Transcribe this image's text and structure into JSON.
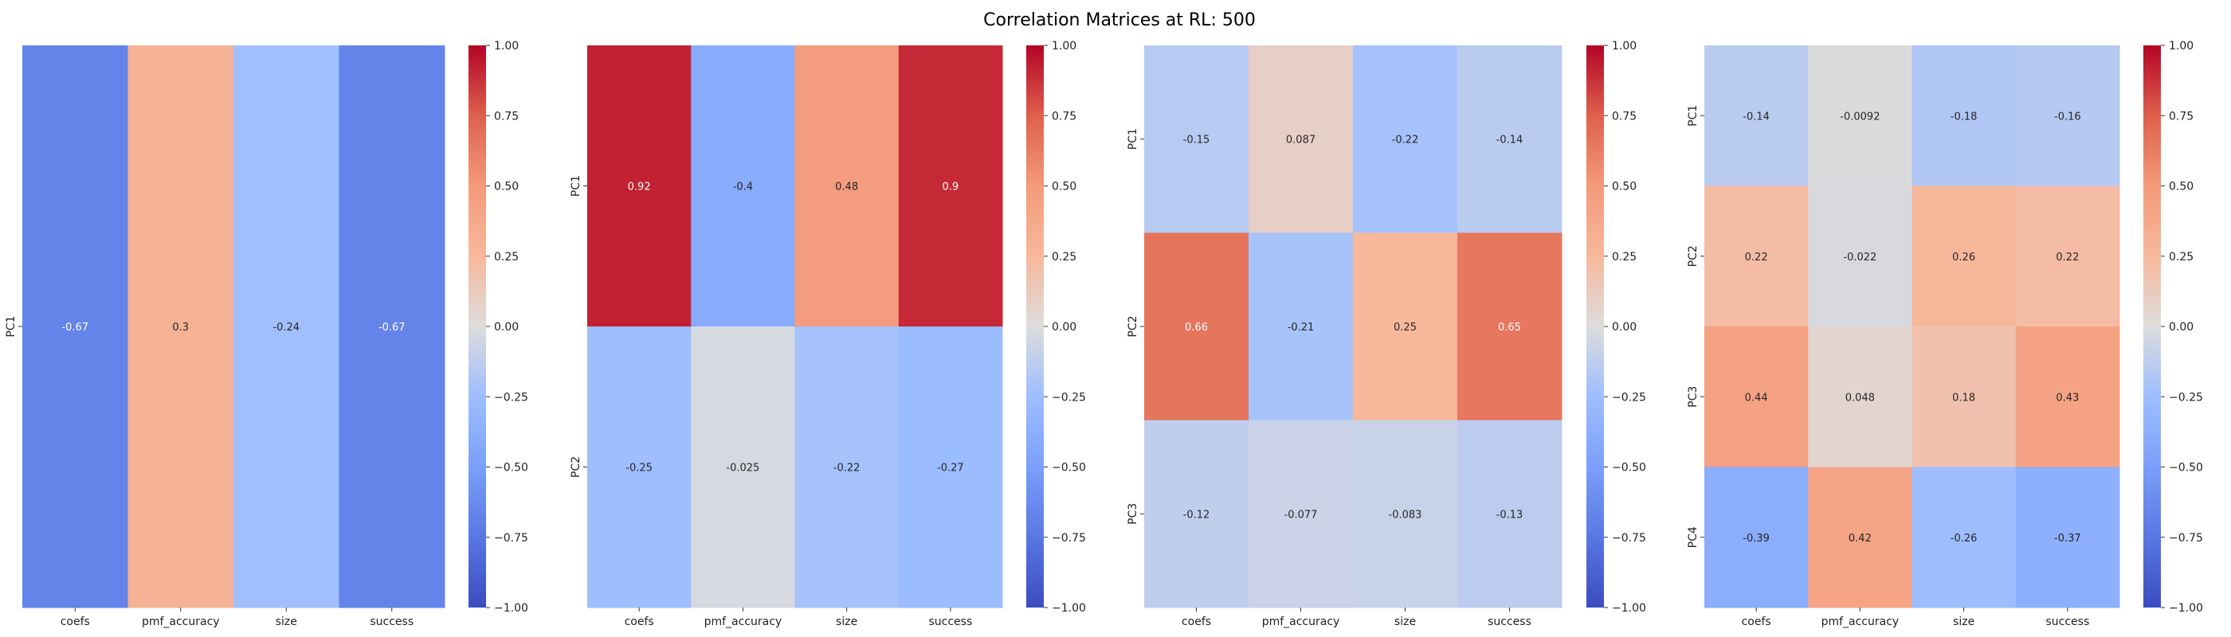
{
  "figure": {
    "suptitle": "Correlation Matrices at RL: 500"
  },
  "chart_data": [
    {
      "type": "heatmap",
      "title": "",
      "x_categories": [
        "coefs",
        "pmf_accuracy",
        "size",
        "success"
      ],
      "y_categories": [
        "PC1"
      ],
      "values": [
        [
          -0.67,
          0.3,
          -0.24,
          -0.67
        ]
      ],
      "value_labels": [
        [
          "-0.67",
          "0.3",
          "-0.24",
          "-0.67"
        ]
      ],
      "colormap": "coolwarm",
      "vmin": -1.0,
      "vmax": 1.0,
      "colorbar_ticks": [
        "1.00",
        "0.75",
        "0.50",
        "0.25",
        "0.00",
        "−0.25",
        "−0.50",
        "−0.75",
        "−1.00"
      ]
    },
    {
      "type": "heatmap",
      "title": "",
      "x_categories": [
        "coefs",
        "pmf_accuracy",
        "size",
        "success"
      ],
      "y_categories": [
        "PC1",
        "PC2"
      ],
      "values": [
        [
          0.92,
          -0.4,
          0.48,
          0.9
        ],
        [
          -0.25,
          -0.025,
          -0.22,
          -0.27
        ]
      ],
      "value_labels": [
        [
          "0.92",
          "-0.4",
          "0.48",
          "0.9"
        ],
        [
          "-0.25",
          "-0.025",
          "-0.22",
          "-0.27"
        ]
      ],
      "colormap": "coolwarm",
      "vmin": -1.0,
      "vmax": 1.0,
      "colorbar_ticks": [
        "1.00",
        "0.75",
        "0.50",
        "0.25",
        "0.00",
        "−0.25",
        "−0.50",
        "−0.75",
        "−1.00"
      ]
    },
    {
      "type": "heatmap",
      "title": "",
      "x_categories": [
        "coefs",
        "pmf_accuracy",
        "size",
        "success"
      ],
      "y_categories": [
        "PC1",
        "PC2",
        "PC3"
      ],
      "values": [
        [
          -0.15,
          0.087,
          -0.22,
          -0.14
        ],
        [
          0.66,
          -0.21,
          0.25,
          0.65
        ],
        [
          -0.12,
          -0.077,
          -0.083,
          -0.13
        ]
      ],
      "value_labels": [
        [
          "-0.15",
          "0.087",
          "-0.22",
          "-0.14"
        ],
        [
          "0.66",
          "-0.21",
          "0.25",
          "0.65"
        ],
        [
          "-0.12",
          "-0.077",
          "-0.083",
          "-0.13"
        ]
      ],
      "colormap": "coolwarm",
      "vmin": -1.0,
      "vmax": 1.0,
      "colorbar_ticks": [
        "1.00",
        "0.75",
        "0.50",
        "0.25",
        "0.00",
        "−0.25",
        "−0.50",
        "−0.75",
        "−1.00"
      ]
    },
    {
      "type": "heatmap",
      "title": "",
      "x_categories": [
        "coefs",
        "pmf_accuracy",
        "size",
        "success"
      ],
      "y_categories": [
        "PC1",
        "PC2",
        "PC3",
        "PC4"
      ],
      "values": [
        [
          -0.14,
          -0.0092,
          -0.18,
          -0.16
        ],
        [
          0.22,
          -0.022,
          0.26,
          0.22
        ],
        [
          0.44,
          0.048,
          0.18,
          0.43
        ],
        [
          -0.39,
          0.42,
          -0.26,
          -0.37
        ]
      ],
      "value_labels": [
        [
          "-0.14",
          "-0.0092",
          "-0.18",
          "-0.16"
        ],
        [
          "0.22",
          "-0.022",
          "0.26",
          "0.22"
        ],
        [
          "0.44",
          "0.048",
          "0.18",
          "0.43"
        ],
        [
          "-0.39",
          "0.42",
          "-0.26",
          "-0.37"
        ]
      ],
      "colormap": "coolwarm",
      "vmin": -1.0,
      "vmax": 1.0,
      "colorbar_ticks": [
        "1.00",
        "0.75",
        "0.50",
        "0.25",
        "0.00",
        "−0.25",
        "−0.50",
        "−0.75",
        "−1.00"
      ]
    }
  ]
}
